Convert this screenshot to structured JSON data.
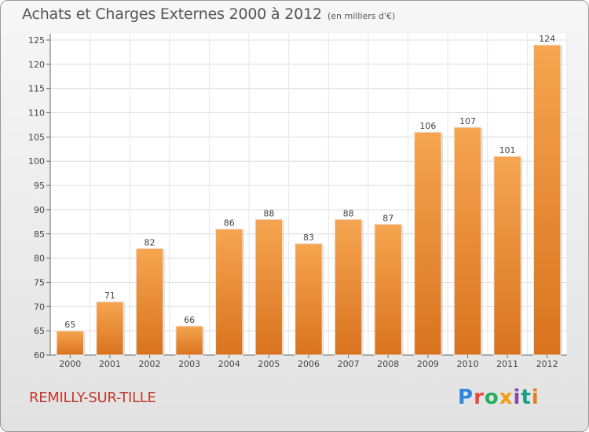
{
  "header": {
    "title": "Achats et Charges Externes 2000 à 2012",
    "unit": "(en milliers d'€)"
  },
  "footer": {
    "city": "REMILLY-SUR-TILLE",
    "logo_text": "Proxiti",
    "logo_colors": [
      "#2e86de",
      "#e74c3c",
      "#27ae60",
      "#f39c12",
      "#8e44ad",
      "#16a085",
      "#e67e22"
    ]
  },
  "chart_data": {
    "type": "bar",
    "categories": [
      "2000",
      "2001",
      "2002",
      "2003",
      "2004",
      "2005",
      "2006",
      "2007",
      "2008",
      "2009",
      "2010",
      "2011",
      "2012"
    ],
    "values": [
      65,
      71,
      82,
      66,
      86,
      88,
      83,
      88,
      87,
      106,
      107,
      101,
      124
    ],
    "ylim": [
      60,
      125
    ],
    "yticks": [
      60,
      65,
      70,
      75,
      80,
      85,
      90,
      95,
      100,
      105,
      110,
      115,
      120,
      125
    ],
    "grid": true,
    "bar_color_top": "#f6a550",
    "bar_color_bottom": "#d9731f"
  }
}
